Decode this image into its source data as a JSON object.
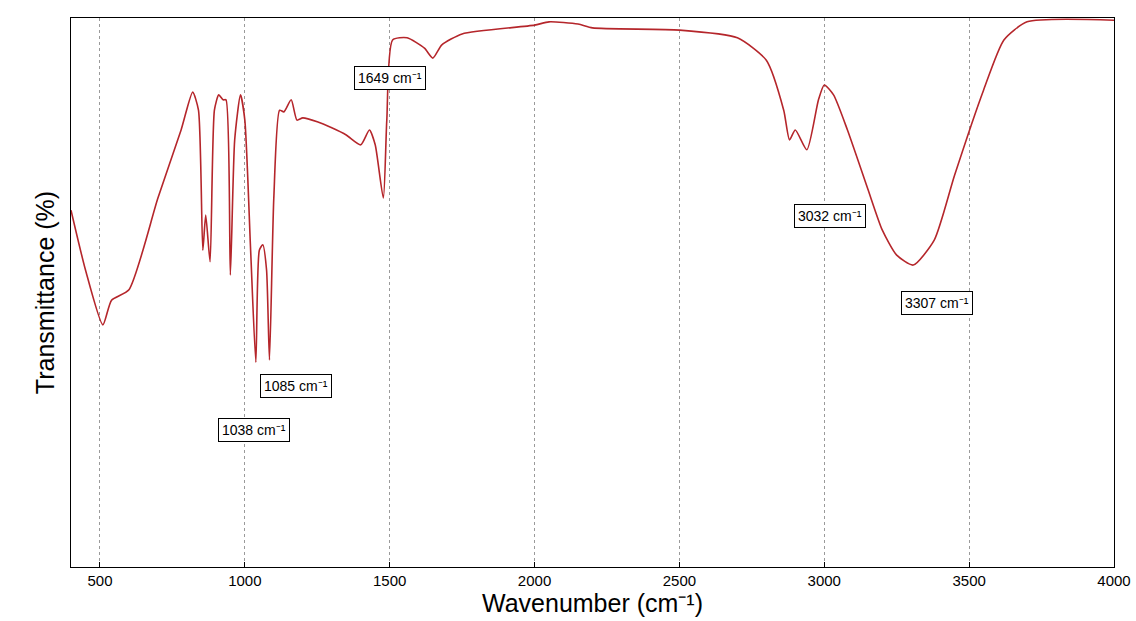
{
  "chart_data": {
    "type": "line",
    "x_label": "Wavenumber (cm⁻¹)",
    "y_label": "Transmittance (%)",
    "color": "#b5262b",
    "xlim": [
      400,
      4000
    ],
    "xticks": [
      500,
      1000,
      1500,
      2000,
      2500,
      3000,
      3500,
      4000
    ],
    "ylim": [
      0,
      100
    ],
    "grid": true,
    "tick_labels": "x",
    "x": [
      400,
      450,
      510,
      540,
      600,
      700,
      780,
      820,
      840,
      855,
      865,
      880,
      895,
      910,
      925,
      935,
      950,
      965,
      985,
      1000,
      1020,
      1038,
      1050,
      1062,
      1075,
      1085,
      1100,
      1120,
      1135,
      1160,
      1180,
      1200,
      1250,
      1300,
      1350,
      1400,
      1430,
      1450,
      1478,
      1490,
      1510,
      1560,
      1620,
      1649,
      1680,
      1750,
      2000,
      2050,
      2150,
      2200,
      2500,
      2700,
      2800,
      2860,
      2880,
      2900,
      2940,
      2980,
      3000,
      3032,
      3080,
      3150,
      3200,
      3250,
      3307,
      3380,
      3450,
      3550,
      3620,
      3700,
      4000
    ],
    "values": [
      65,
      54.1,
      44.1,
      48.6,
      50.5,
      67.2,
      79.6,
      86.5,
      83.2,
      57.7,
      64.1,
      55.6,
      83.2,
      86,
      85.1,
      85.1,
      53.2,
      77.8,
      86,
      81.4,
      57.7,
      37.3,
      57.7,
      58.7,
      54.1,
      37.7,
      67.2,
      83.2,
      82.9,
      85.1,
      81.4,
      81.8,
      81.1,
      80,
      78.7,
      76.9,
      79.6,
      76.9,
      67.2,
      81.4,
      96,
      96.4,
      94.5,
      92.7,
      95.1,
      97.1,
      98.7,
      99.3,
      98.9,
      98.2,
      97.8,
      96.4,
      92.3,
      83.2,
      77.8,
      79.6,
      76,
      85.1,
      87.8,
      86,
      79.6,
      68.9,
      61.4,
      56.8,
      55,
      59.6,
      71.4,
      86.9,
      96,
      99.3,
      99.6
    ],
    "annotations": [
      {
        "text": "1649 cm⁻¹",
        "x": 1500,
        "y": 89
      },
      {
        "text": "1085 cm⁻¹",
        "x": 1175,
        "y": 33
      },
      {
        "text": "1038 cm⁻¹",
        "x": 1030,
        "y": 25
      },
      {
        "text": "3032 cm⁻¹",
        "x": 3020,
        "y": 64
      },
      {
        "text": "3307 cm⁻¹",
        "x": 3390,
        "y": 48
      }
    ]
  }
}
